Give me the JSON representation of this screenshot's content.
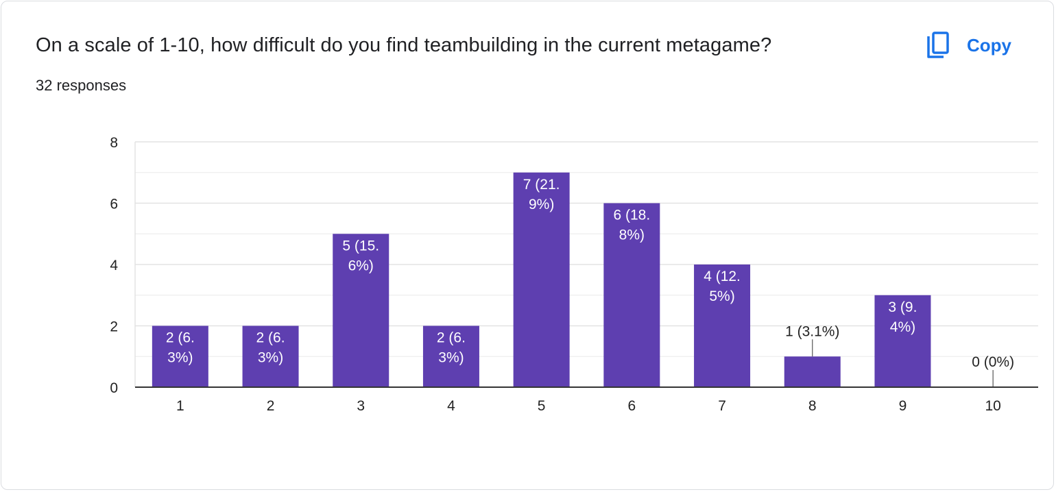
{
  "header": {
    "title": "On a scale of 1-10, how difficult do you find teambuilding in the current metagame?",
    "responses": "32 responses",
    "copy_label": "Copy"
  },
  "colors": {
    "bar": "#5e3fb0",
    "accent": "#1a73e8",
    "grid": "#e6e6e6",
    "axis": "#333333"
  },
  "chart_data": {
    "type": "bar",
    "categories": [
      "1",
      "2",
      "3",
      "4",
      "5",
      "6",
      "7",
      "8",
      "9",
      "10"
    ],
    "values": [
      2,
      2,
      5,
      2,
      7,
      6,
      4,
      1,
      3,
      0
    ],
    "data_labels": [
      [
        "2 (6.",
        "3%)"
      ],
      [
        "2 (6.",
        "3%)"
      ],
      [
        "5 (15.",
        "6%)"
      ],
      [
        "2 (6.",
        "3%)"
      ],
      [
        "7 (21.",
        "9%)"
      ],
      [
        "6 (18.",
        "8%)"
      ],
      [
        "4 (12.",
        "5%)"
      ],
      [
        "1 (3.1%)"
      ],
      [
        "3 (9.",
        "4%)"
      ],
      [
        "0 (0%)"
      ]
    ],
    "yticks": [
      0,
      2,
      4,
      6,
      8
    ],
    "ylim": [
      0,
      8
    ],
    "grid": true,
    "legend": "none"
  }
}
